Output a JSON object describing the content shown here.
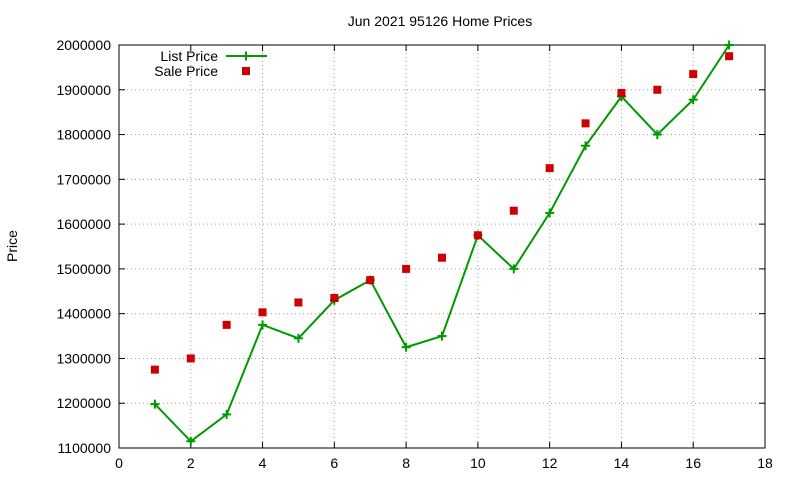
{
  "chart_data": {
    "type": "line",
    "title": "Jun 2021 95126 Home Prices",
    "xlabel": "",
    "ylabel": "Price",
    "xlim": [
      0,
      18
    ],
    "ylim": [
      1100000,
      2000000
    ],
    "xticks": [
      0,
      2,
      4,
      6,
      8,
      10,
      12,
      14,
      16,
      18
    ],
    "yticks": [
      1100000,
      1200000,
      1300000,
      1400000,
      1500000,
      1600000,
      1700000,
      1800000,
      1900000,
      2000000
    ],
    "grid": true,
    "legend_position": "top-left",
    "series": [
      {
        "name": "List Price",
        "style": "line-with-plus-markers",
        "color": "#009900",
        "x": [
          1,
          2,
          3,
          4,
          5,
          6,
          7,
          8,
          9,
          10,
          11,
          12,
          13,
          14,
          15,
          16,
          17
        ],
        "y": [
          1198000,
          1115000,
          1175000,
          1375000,
          1345000,
          1430000,
          1475000,
          1325000,
          1350000,
          1575000,
          1500000,
          1625000,
          1775000,
          1885000,
          1800000,
          1878000,
          2000000
        ]
      },
      {
        "name": "Sale Price",
        "style": "square-markers",
        "color": "#cc0000",
        "x": [
          1,
          2,
          3,
          4,
          5,
          6,
          7,
          8,
          9,
          10,
          11,
          12,
          13,
          14,
          15,
          16,
          17
        ],
        "y": [
          1275000,
          1300000,
          1375000,
          1403000,
          1425000,
          1435000,
          1475000,
          1500000,
          1525000,
          1575000,
          1630000,
          1725000,
          1825000,
          1893000,
          1900000,
          1935000,
          1975000
        ]
      }
    ]
  }
}
